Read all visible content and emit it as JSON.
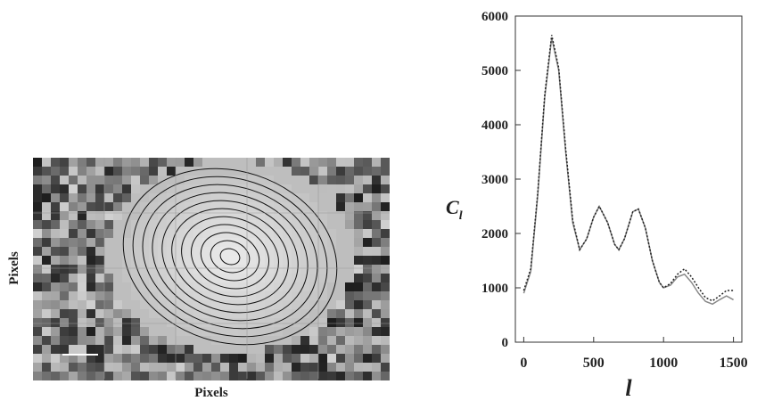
{
  "image_panel": {
    "x_label": "Pixels",
    "y_label": "Pixels"
  },
  "chart_data": {
    "type": "line",
    "x_label": "l",
    "y_label": {
      "main": "C",
      "sub": "l"
    },
    "x": [
      0,
      50,
      100,
      150,
      200,
      250,
      300,
      350,
      400,
      450,
      500,
      540,
      600,
      650,
      680,
      720,
      780,
      820,
      870,
      920,
      970,
      1000,
      1050,
      1100,
      1150,
      1200,
      1250,
      1300,
      1350,
      1400,
      1450,
      1500
    ],
    "series": [
      {
        "color": "#888888",
        "dash": false,
        "values": [
          900,
          1300,
          2700,
          4500,
          5600,
          5000,
          3500,
          2200,
          1700,
          1900,
          2300,
          2500,
          2200,
          1800,
          1700,
          1900,
          2400,
          2450,
          2100,
          1500,
          1100,
          1000,
          1050,
          1200,
          1250,
          1100,
          900,
          750,
          700,
          780,
          850,
          780
        ]
      },
      {
        "color": "#222222",
        "dash": true,
        "values": [
          950,
          1350,
          2750,
          4550,
          5650,
          5050,
          3550,
          2250,
          1700,
          1900,
          2300,
          2500,
          2200,
          1800,
          1700,
          1900,
          2400,
          2450,
          2100,
          1500,
          1100,
          1000,
          1080,
          1250,
          1350,
          1200,
          1000,
          820,
          760,
          850,
          950,
          950
        ]
      }
    ],
    "xlim": [
      -60,
      1560
    ],
    "ylim": [
      0,
      6000
    ],
    "xticks": [
      0,
      500,
      1000,
      1500
    ],
    "yticks": [
      0,
      1000,
      2000,
      3000,
      4000,
      5000,
      6000
    ]
  }
}
